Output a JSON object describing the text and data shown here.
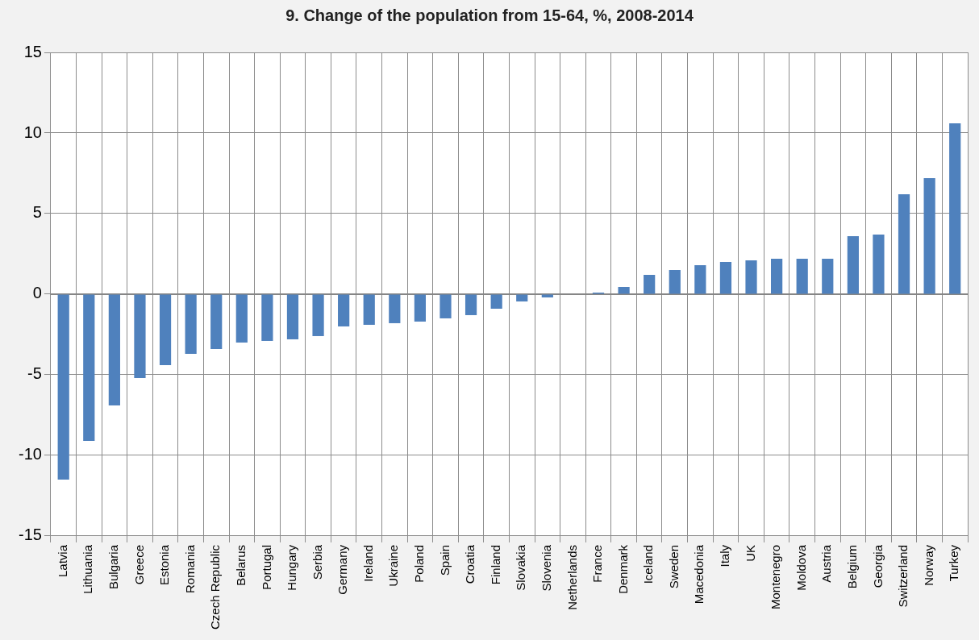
{
  "chart_data": {
    "type": "bar",
    "title": "9. Change of the population from 15-64, %, 2008-2014",
    "categories": [
      "Latvia",
      "Lithuania",
      "Bulgaria",
      "Greece",
      "Estonia",
      "Romania",
      "Czech Republic",
      "Belarus",
      "Portugal",
      "Hungary",
      "Serbia",
      "Germany",
      "Ireland",
      "Ukraine",
      "Poland",
      "Spain",
      "Croatia",
      "Finland",
      "Slovakia",
      "Slovenia",
      "Netherlands",
      "France",
      "Denmark",
      "Iceland",
      "Sweden",
      "Macedonia",
      "Italy",
      "UK",
      "Montenegro",
      "Moldova",
      "Austria",
      "Belgium",
      "Georgia",
      "Switzerland",
      "Norway",
      "Turkey"
    ],
    "values": [
      -11.5,
      -9.1,
      -6.9,
      -5.2,
      -4.4,
      -3.7,
      -3.4,
      -3.0,
      -2.9,
      -2.8,
      -2.6,
      -2.0,
      -1.9,
      -1.8,
      -1.7,
      -1.5,
      -1.3,
      -0.9,
      -0.45,
      -0.2,
      0,
      0.1,
      0.45,
      1.2,
      1.5,
      1.8,
      2.0,
      2.1,
      2.2,
      2.2,
      2.2,
      3.6,
      3.7,
      6.2,
      7.2,
      10.6
    ],
    "color": "#4f81bd",
    "ylim": [
      -15,
      15
    ],
    "yticks": [
      -15,
      -10,
      -5,
      0,
      5,
      10,
      15
    ],
    "grid": true,
    "legend": false
  }
}
